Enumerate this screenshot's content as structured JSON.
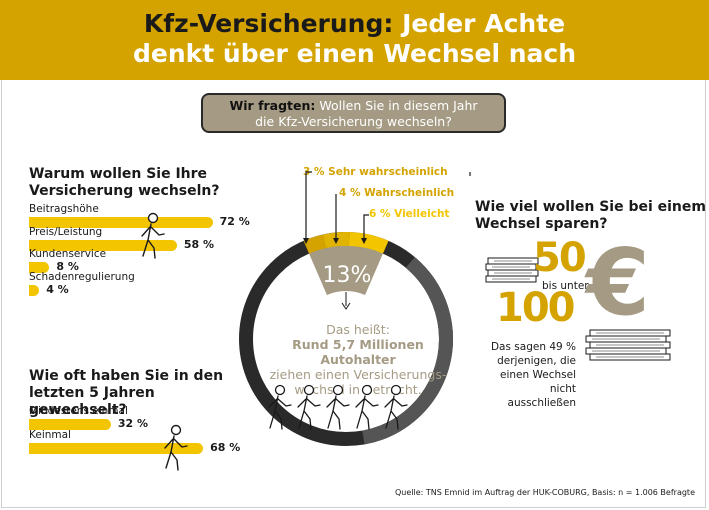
{
  "header": {
    "title_dark": "Kfz-Versicherung:",
    "title_light": "Jeder Achte",
    "title_line2": "denkt über einen Wechsel nach"
  },
  "question": {
    "lead": "Wir fragten:",
    "text1": "Wollen Sie in diesem Jahr",
    "text2": "die Kfz-Versicherung wechseln?"
  },
  "colors": {
    "accent": "#d4a300",
    "bar": "#f2c500",
    "taupe": "#a59b84",
    "dark": "#2a2a2a",
    "ring_grey": "#555555"
  },
  "icons": [
    "walking-person-icon",
    "money-stack-icon",
    "euro-icon"
  ],
  "chart_data": [
    {
      "type": "bar",
      "title": "Warum wollen Sie Ihre Versicherung wechseln?",
      "categories": [
        "Beitragshöhe",
        "Preis/Leistung",
        "Kundenservice",
        "Schadenregulierung"
      ],
      "values": [
        72,
        58,
        8,
        4
      ],
      "value_labels": [
        "72 %",
        "58 %",
        "8 %",
        "4 %"
      ],
      "unit": "%"
    },
    {
      "type": "bar",
      "title": "Wie oft haben Sie in den letzten 5 Jahren gewechselt?",
      "categories": [
        "Mindestens einmal",
        "Keinmal"
      ],
      "values": [
        32,
        68
      ],
      "value_labels": [
        "32 %",
        "68 %"
      ],
      "unit": "%"
    },
    {
      "type": "pie",
      "categories": [
        "Sehr wahrscheinlich",
        "Wahrscheinlich",
        "Vielleicht"
      ],
      "values": [
        3,
        4,
        6
      ],
      "value_labels": [
        "3 % Sehr wahrscheinlich",
        "4 % Wahrscheinlich",
        "6 % Vielleicht"
      ],
      "total": 13,
      "total_label": "13%",
      "colors": [
        "#d4a300",
        "#e0b400",
        "#f2c500"
      ]
    }
  ],
  "center": {
    "line1": "Das heißt:",
    "line2": "Rund 5,7 Millionen Autohalter",
    "line3": "ziehen einen Versicherungs-",
    "line4": "wechsel in Betracht."
  },
  "savings": {
    "title1": "Wie viel wollen Sie bei einem",
    "title2": "Wechsel sparen?",
    "low": "50",
    "between": "bis unter",
    "high": "100",
    "euro_symbol": "€",
    "say1": "Das sagen 49 %",
    "say2": "derjenigen, die",
    "say3": "einen Wechsel nicht",
    "say4": "ausschließen"
  },
  "source": "Quelle: TNS Emnid im Auftrag der HUK-COBURG, Basis: n = 1.006 Befragte"
}
